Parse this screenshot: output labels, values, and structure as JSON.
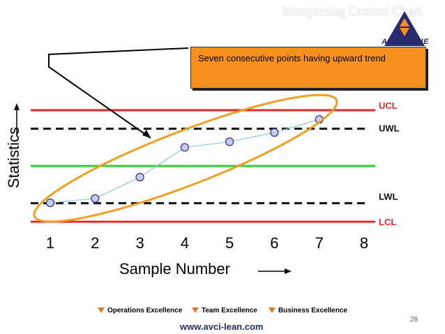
{
  "header": {
    "title": "Interpreting Control Chart",
    "logo_text": "ADD VALUE"
  },
  "callout": {
    "text": "Seven consecutive points having upward trend"
  },
  "colors": {
    "ucl": "#e8262a",
    "lcl": "#e8262a",
    "center": "#2bd42b",
    "warning": "#111111",
    "points_fill": "#c6c9f0",
    "points_stroke": "#2a2a6e",
    "trend_line": "#8fc6e0",
    "ellipse": "#f0a020",
    "callout_bg": "#f5901e"
  },
  "footer": {
    "items": [
      "Operations Excellence",
      "Team Excellence",
      "Business Excellence"
    ],
    "url": "www.avci-lean.com",
    "page_number": "28"
  },
  "chart_data": {
    "type": "line",
    "xlabel": "Sample Number",
    "ylabel": "Statistics",
    "x_ticks": [
      1,
      2,
      3,
      4,
      5,
      6,
      7,
      8
    ],
    "xlim": [
      1,
      8
    ],
    "ylim": [
      -3,
      3
    ],
    "series": [
      {
        "x": [
          1,
          2,
          3,
          4,
          5,
          6,
          7
        ],
        "values": [
          -1.98,
          -1.75,
          -0.6,
          1.0,
          1.3,
          1.8,
          2.5
        ]
      }
    ],
    "limit_lines": [
      {
        "label": "UCL",
        "value": 3.0,
        "style": "solid",
        "color": "#e8262a"
      },
      {
        "label": "UWL",
        "value": 2.0,
        "style": "dashed",
        "color": "#111111"
      },
      {
        "label": "",
        "value": 0.0,
        "style": "solid",
        "color": "#2bd42b"
      },
      {
        "label": "LWL",
        "value": -2.0,
        "style": "dashed",
        "color": "#111111"
      },
      {
        "label": "LCL",
        "value": -3.0,
        "style": "solid",
        "color": "#e8262a"
      }
    ],
    "annotation": "Seven consecutive points having upward trend"
  }
}
